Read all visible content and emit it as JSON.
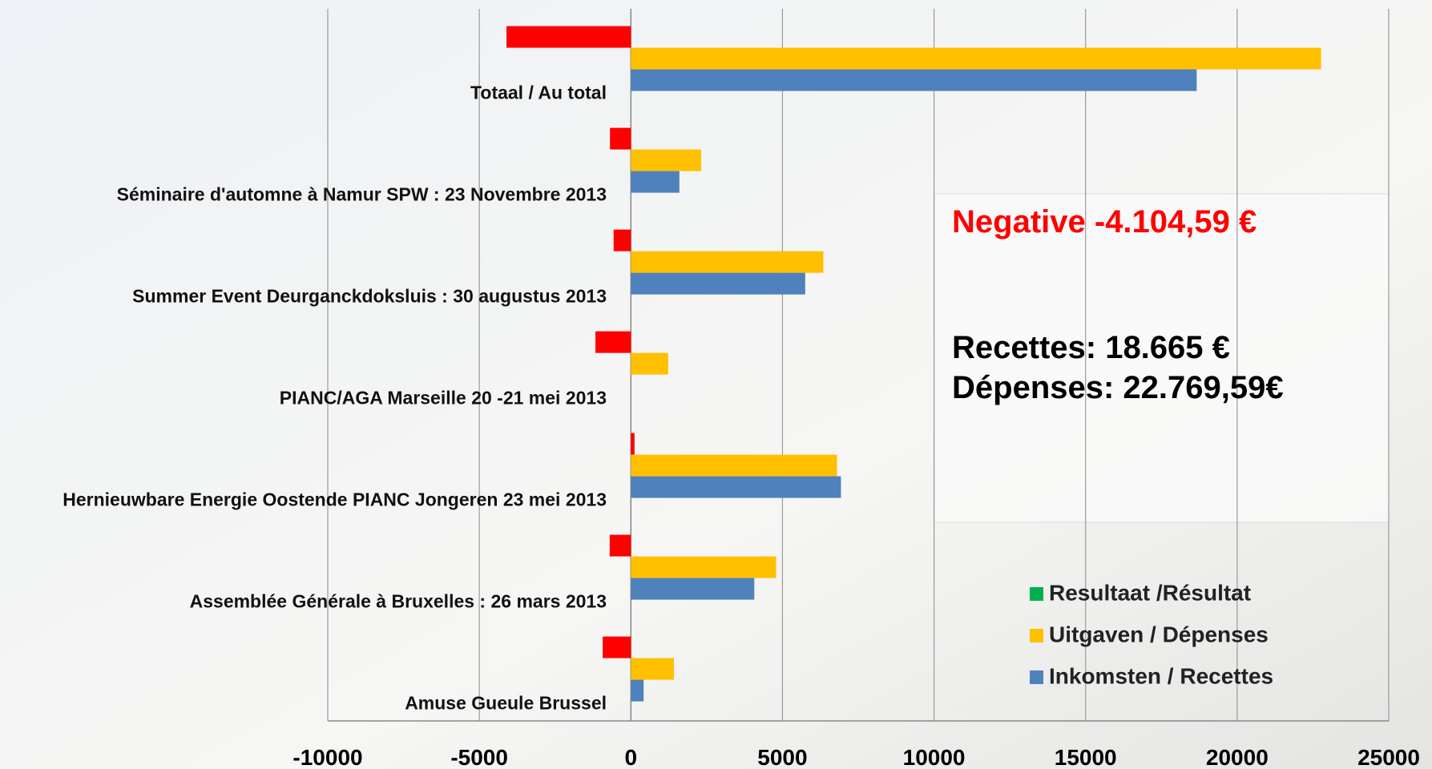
{
  "chart_data": {
    "type": "hbar",
    "categories": [
      "Totaal / Au total",
      "Séminaire d'automne à Namur SPW : 23 Novembre 2013",
      "Summer Event Deurganckdoksluis :  30 augustus 2013",
      "PIANC/AGA Marseille  20 -21 mei 2013",
      "Hernieuwbare Energie Oostende PIANC Jongeren  23 mei 2013",
      "Assemblée Générale à Bruxelles : 26 mars 2013",
      "Amuse Gueule Brussel"
    ],
    "series": [
      {
        "name": "Resultaat /Résultat",
        "color": "#ff0000",
        "legend_color": "#00b050",
        "values": [
          -4104.59,
          -690,
          -570,
          -1170,
          120,
          -700,
          -930
        ]
      },
      {
        "name": "Uitgaven / Dépenses",
        "color": "#ffc000",
        "values": [
          22769.59,
          2320,
          6350,
          1230,
          6800,
          4790,
          1420
        ]
      },
      {
        "name": "Inkomsten / Recettes",
        "color": "#4f81bd",
        "values": [
          18665,
          1600,
          5750,
          0,
          6930,
          4070,
          420
        ]
      }
    ],
    "xlim": [
      -10000,
      25000
    ],
    "xticks": [
      -10000,
      -5000,
      0,
      5000,
      10000,
      15000,
      20000,
      25000
    ],
    "grid": true,
    "annotations": [
      "Negative -4.104,59 €",
      "Recettes: 18.665 €",
      "Dépenses: 22.769,59€"
    ],
    "legend": "lower right"
  }
}
